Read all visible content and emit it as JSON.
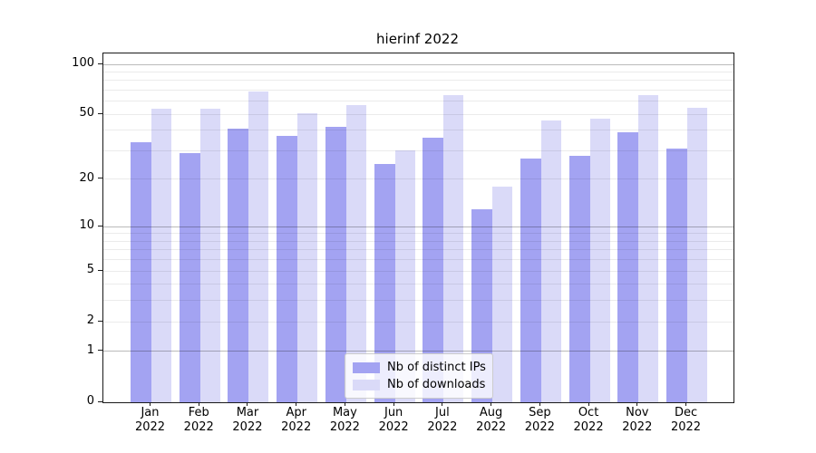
{
  "chart_data": {
    "type": "bar",
    "title": "hierinf 2022",
    "year_label": "2022",
    "categories": [
      "Jan",
      "Feb",
      "Mar",
      "Apr",
      "May",
      "Jun",
      "Jul",
      "Aug",
      "Sep",
      "Oct",
      "Nov",
      "Dec"
    ],
    "series": [
      {
        "name": "Nb of distinct IPs",
        "color": "#a3a3f2",
        "values": [
          34,
          29,
          41,
          37,
          42,
          25,
          36,
          13,
          27,
          28,
          39,
          31
        ]
      },
      {
        "name": "Nb of downloads",
        "color": "#dadaf8",
        "values": [
          54,
          54,
          69,
          51,
          57,
          30,
          65,
          18,
          46,
          47,
          65,
          55
        ]
      }
    ],
    "xlabel": "",
    "ylabel": "",
    "yscale": "log1p",
    "ylim": [
      0,
      116
    ],
    "yticks": [
      "0",
      "1",
      "2",
      "5",
      "10",
      "20",
      "50",
      "100"
    ],
    "major_gridlines": [
      1,
      10,
      100
    ],
    "minor_gridlines": [
      2,
      3,
      4,
      5,
      6,
      7,
      8,
      9,
      20,
      30,
      40,
      50,
      60,
      70,
      80,
      90
    ],
    "grid": true,
    "legend_position": "lower center",
    "colors": {
      "axis": "#1a1a1a",
      "grid_minor": "#ebebeb",
      "grid_major": "#bababa",
      "legend_border": "#cccccc"
    }
  }
}
